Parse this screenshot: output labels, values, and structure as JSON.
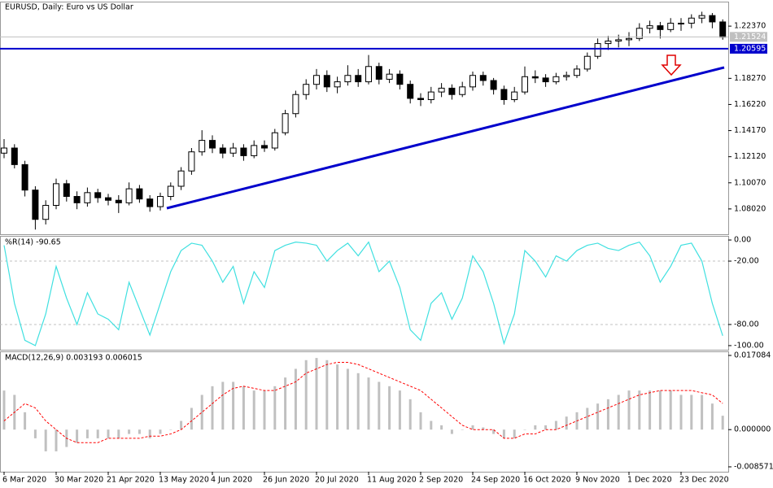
{
  "chart_data": [
    {
      "type": "candlestick",
      "title": "EURUSD, Daily:  Euro vs US Dollar",
      "categories": [
        "6 Mar 2020",
        null,
        null,
        null,
        null,
        "30 Mar 2020",
        null,
        null,
        null,
        null,
        "21 Apr 2020",
        null,
        null,
        null,
        null,
        "13 May 2020",
        null,
        null,
        null,
        null,
        "4 Jun 2020",
        null,
        null,
        null,
        null,
        "26 Jun 2020",
        null,
        null,
        null,
        null,
        "20 Jul 2020",
        null,
        null,
        null,
        null,
        "11 Aug 2020",
        null,
        null,
        null,
        null,
        "2 Sep 2020",
        null,
        null,
        null,
        null,
        "24 Sep 2020",
        null,
        null,
        null,
        null,
        "16 Oct 2020",
        null,
        null,
        null,
        null,
        "9 Nov 2020",
        null,
        null,
        null,
        null,
        "1 Dec 2020",
        null,
        null,
        null,
        null,
        "23 Dec 2020",
        null,
        null,
        null,
        null
      ],
      "open": [
        1.124,
        1.128,
        1.115,
        1.095,
        1.072,
        1.083,
        1.1,
        1.09,
        1.085,
        1.093,
        1.089,
        1.087,
        1.085,
        1.096,
        1.088,
        1.082,
        1.09,
        1.098,
        1.11,
        1.125,
        1.134,
        1.128,
        1.124,
        1.128,
        1.122,
        1.13,
        1.128,
        1.14,
        1.155,
        1.17,
        1.178,
        1.185,
        1.176,
        1.18,
        1.185,
        1.18,
        1.192,
        1.182,
        1.186,
        1.178,
        1.167,
        1.166,
        1.172,
        1.175,
        1.17,
        1.176,
        1.185,
        1.181,
        1.174,
        1.166,
        1.172,
        1.184,
        1.183,
        1.18,
        1.184,
        1.185,
        1.19,
        1.2,
        1.21,
        1.212,
        1.213,
        1.214,
        1.222,
        1.224,
        1.221,
        1.226,
        1.226,
        1.23,
        1.232,
        1.227
      ],
      "high": [
        1.135,
        1.131,
        1.118,
        1.098,
        1.087,
        1.104,
        1.103,
        1.094,
        1.097,
        1.096,
        1.092,
        1.091,
        1.101,
        1.099,
        1.091,
        1.093,
        1.101,
        1.113,
        1.128,
        1.142,
        1.138,
        1.131,
        1.132,
        1.131,
        1.134,
        1.134,
        1.143,
        1.158,
        1.173,
        1.182,
        1.19,
        1.189,
        1.184,
        1.193,
        1.19,
        1.201,
        1.195,
        1.19,
        1.189,
        1.181,
        1.171,
        1.176,
        1.179,
        1.178,
        1.18,
        1.188,
        1.188,
        1.183,
        1.177,
        1.176,
        1.192,
        1.189,
        1.186,
        1.187,
        1.188,
        1.193,
        1.203,
        1.214,
        1.216,
        1.217,
        1.219,
        1.226,
        1.228,
        1.227,
        1.23,
        1.23,
        1.233,
        1.235,
        1.234,
        1.229
      ],
      "low": [
        1.12,
        1.112,
        1.09,
        1.064,
        1.068,
        1.08,
        1.086,
        1.08,
        1.082,
        1.085,
        1.083,
        1.077,
        1.083,
        1.085,
        1.078,
        1.079,
        1.087,
        1.095,
        1.107,
        1.122,
        1.124,
        1.12,
        1.121,
        1.118,
        1.12,
        1.125,
        1.126,
        1.138,
        1.152,
        1.166,
        1.174,
        1.172,
        1.171,
        1.177,
        1.176,
        1.178,
        1.178,
        1.179,
        1.174,
        1.163,
        1.161,
        1.163,
        1.168,
        1.166,
        1.168,
        1.173,
        1.177,
        1.17,
        1.162,
        1.164,
        1.17,
        1.179,
        1.176,
        1.178,
        1.181,
        1.183,
        1.188,
        1.198,
        1.205,
        1.207,
        1.208,
        1.212,
        1.218,
        1.214,
        1.219,
        1.22,
        1.222,
        1.226,
        1.222,
        1.213
      ],
      "close": [
        1.128,
        1.115,
        1.095,
        1.072,
        1.083,
        1.1,
        1.09,
        1.085,
        1.093,
        1.089,
        1.087,
        1.085,
        1.096,
        1.088,
        1.082,
        1.09,
        1.098,
        1.11,
        1.125,
        1.134,
        1.128,
        1.124,
        1.128,
        1.122,
        1.13,
        1.128,
        1.14,
        1.155,
        1.17,
        1.178,
        1.185,
        1.176,
        1.18,
        1.185,
        1.18,
        1.192,
        1.182,
        1.186,
        1.178,
        1.167,
        1.166,
        1.172,
        1.175,
        1.17,
        1.176,
        1.185,
        1.181,
        1.174,
        1.166,
        1.172,
        1.184,
        1.183,
        1.18,
        1.184,
        1.185,
        1.19,
        1.2,
        1.21,
        1.212,
        1.213,
        1.214,
        1.222,
        1.224,
        1.221,
        1.226,
        1.226,
        1.23,
        1.232,
        1.227,
        1.215
      ],
      "color_up": "#ffffff",
      "color_down": "#000000",
      "ylim": [
        1.06033,
        1.24293
      ],
      "yticks": [
        {
          "value": 1.2237,
          "label": "1.22370"
        },
        {
          "value": 1.1827,
          "label": "1.18270"
        },
        {
          "value": 1.1622,
          "label": "1.16220"
        },
        {
          "value": 1.1417,
          "label": "1.14170"
        },
        {
          "value": 1.1212,
          "label": "1.12120"
        },
        {
          "value": 1.1007,
          "label": "1.10070"
        },
        {
          "value": 1.0802,
          "label": "1.08020"
        }
      ],
      "level_line": {
        "value": 1.20595,
        "label": "1.20595",
        "color": "#0000cc"
      },
      "current_price": {
        "value": 1.21524,
        "label": "1.21524"
      }
    },
    {
      "type": "line",
      "title": "%R(14) -90.65",
      "color": "#40e0e0",
      "values": [
        -5,
        -60,
        -95,
        -100,
        -70,
        -25,
        -55,
        -80,
        -50,
        -70,
        -75,
        -85,
        -40,
        -65,
        -90,
        -60,
        -30,
        -10,
        -3,
        -5,
        -20,
        -40,
        -25,
        -60,
        -30,
        -45,
        -10,
        -5,
        -2,
        -3,
        -5,
        -20,
        -10,
        -3,
        -15,
        -2,
        -30,
        -20,
        -45,
        -85,
        -95,
        -60,
        -50,
        -75,
        -55,
        -15,
        -30,
        -60,
        -98,
        -70,
        -10,
        -20,
        -35,
        -15,
        -20,
        -10,
        -5,
        -3,
        -8,
        -10,
        -5,
        -2,
        -15,
        -40,
        -25,
        -5,
        -3,
        -20,
        -60,
        -90.65
      ],
      "ylim": [
        -103.9,
        3.9
      ],
      "yticks": [
        {
          "value": 0,
          "label": "0.00"
        },
        {
          "value": -20,
          "label": "-20.00"
        },
        {
          "value": -80,
          "label": "-80.00"
        },
        {
          "value": -100,
          "label": "-100.00"
        }
      ],
      "grid_levels": [
        -20,
        -80
      ]
    },
    {
      "type": "macd",
      "title": "MACD(12,26,9) 0.003193 0.006015",
      "histogram": {
        "color": "#c0c0c0",
        "values": [
          0.009,
          0.008,
          0.004,
          -0.002,
          -0.005,
          -0.005,
          -0.004,
          -0.003,
          -0.002,
          -0.002,
          -0.002,
          -0.002,
          -0.001,
          -0.001,
          -0.002,
          -0.001,
          0.0,
          0.002,
          0.005,
          0.008,
          0.01,
          0.011,
          0.011,
          0.01,
          0.009,
          0.009,
          0.01,
          0.012,
          0.014,
          0.016,
          0.0165,
          0.016,
          0.015,
          0.014,
          0.013,
          0.012,
          0.011,
          0.01,
          0.009,
          0.007,
          0.004,
          0.002,
          0.001,
          -0.001,
          0.0,
          0.001,
          0.0005,
          -0.001,
          -0.002,
          -0.002,
          0.0,
          0.001,
          0.001,
          0.002,
          0.003,
          0.004,
          0.005,
          0.006,
          0.007,
          0.008,
          0.009,
          0.009,
          0.009,
          0.009,
          0.009,
          0.008,
          0.008,
          0.008,
          0.006,
          0.003193
        ]
      },
      "signal": {
        "color": "#ff0000",
        "values": [
          0.002,
          0.004,
          0.006,
          0.005,
          0.002,
          0.0,
          -0.002,
          -0.003,
          -0.003,
          -0.003,
          -0.002,
          -0.002,
          -0.002,
          -0.002,
          -0.0015,
          -0.0015,
          -0.001,
          0.0,
          0.002,
          0.004,
          0.006,
          0.008,
          0.0095,
          0.01,
          0.0095,
          0.009,
          0.009,
          0.01,
          0.011,
          0.013,
          0.014,
          0.015,
          0.0155,
          0.0155,
          0.015,
          0.014,
          0.013,
          0.012,
          0.011,
          0.01,
          0.009,
          0.007,
          0.005,
          0.003,
          0.001,
          0.0,
          0.0,
          0.0,
          -0.002,
          -0.002,
          -0.001,
          -0.001,
          0.0,
          0.0,
          0.001,
          0.002,
          0.003,
          0.004,
          0.005,
          0.006,
          0.007,
          0.008,
          0.0085,
          0.009,
          0.009,
          0.009,
          0.009,
          0.0085,
          0.008,
          0.006015
        ]
      },
      "ylim": [
        -0.0097,
        0.018023
      ],
      "yticks": [
        {
          "value": 0.017084,
          "label": "0.017084"
        },
        {
          "value": 0,
          "label": "0.000000"
        },
        {
          "value": -0.008571,
          "label": "-0.008571"
        }
      ]
    }
  ]
}
